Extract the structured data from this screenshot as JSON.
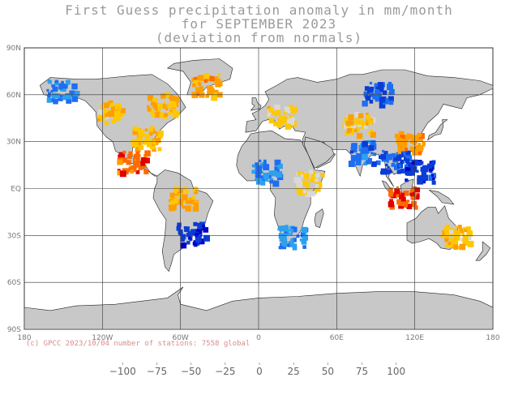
{
  "title": {
    "line1": "First Guess precipitation anomaly in mm/month",
    "line2": "for SEPTEMBER 2023",
    "line3": "(deviation from normals)"
  },
  "credit": "(c) GPCC 2023/10/04 number of stations: 7558 global",
  "axes": {
    "lat_labels": [
      "90N",
      "60N",
      "30N",
      "EQ",
      "30S",
      "60S",
      "90S"
    ],
    "lon_labels": [
      "180",
      "120W",
      "60W",
      "0",
      "60E",
      "120E",
      "180"
    ]
  },
  "colorbar": {
    "colors": [
      "#e00000",
      "#ff6a00",
      "#ff9e00",
      "#ffc800",
      "#d9d9d9",
      "#a8a8a8",
      "#00c8f0",
      "#2ea0f0",
      "#1e6ef0",
      "#0a3cd7",
      "#0000c8"
    ],
    "labels": [
      "-100",
      "-75",
      "-50",
      "-25",
      "0",
      "25",
      "50",
      "75",
      "100"
    ],
    "land_no_anomaly": "#c8c8c8"
  },
  "anomalies": [
    {
      "name": "north-america-west-dry",
      "lat": 50,
      "lon": -115,
      "value": -40
    },
    {
      "name": "us-southeast-dry",
      "lat": 33,
      "lon": -88,
      "value": -45
    },
    {
      "name": "canada-east-dry",
      "lat": 55,
      "lon": -75,
      "value": -50
    },
    {
      "name": "greenland-south-dry",
      "lat": 67,
      "lon": -42,
      "value": -60
    },
    {
      "name": "alaska-wet",
      "lat": 64,
      "lon": -152,
      "value": 55
    },
    {
      "name": "mexico-central-america-dry",
      "lat": 18,
      "lon": -98,
      "value": -90
    },
    {
      "name": "amazon-dry",
      "lat": -5,
      "lon": -60,
      "value": -55
    },
    {
      "name": "southern-brazil-wet",
      "lat": -28,
      "lon": -53,
      "value": 95
    },
    {
      "name": "europe-dry",
      "lat": 48,
      "lon": 15,
      "value": -35
    },
    {
      "name": "sahel-wet",
      "lat": 12,
      "lon": 5,
      "value": 50
    },
    {
      "name": "siberia-wet",
      "lat": 62,
      "lon": 90,
      "value": 70
    },
    {
      "name": "central-asia-dry",
      "lat": 42,
      "lon": 75,
      "value": -35
    },
    {
      "name": "india-wet",
      "lat": 24,
      "lon": 80,
      "value": 60
    },
    {
      "name": "indochina-wet",
      "lat": 18,
      "lon": 103,
      "value": 80
    },
    {
      "name": "east-china-dry",
      "lat": 30,
      "lon": 115,
      "value": -70
    },
    {
      "name": "indonesia-dry",
      "lat": -5,
      "lon": 110,
      "value": -95
    },
    {
      "name": "philippines-wet",
      "lat": 12,
      "lon": 123,
      "value": 90
    },
    {
      "name": "east-australia-dry",
      "lat": -30,
      "lon": 150,
      "value": -40
    },
    {
      "name": "south-africa-wet",
      "lat": -30,
      "lon": 25,
      "value": 45
    },
    {
      "name": "east-africa-dry",
      "lat": 5,
      "lon": 38,
      "value": -30
    }
  ]
}
